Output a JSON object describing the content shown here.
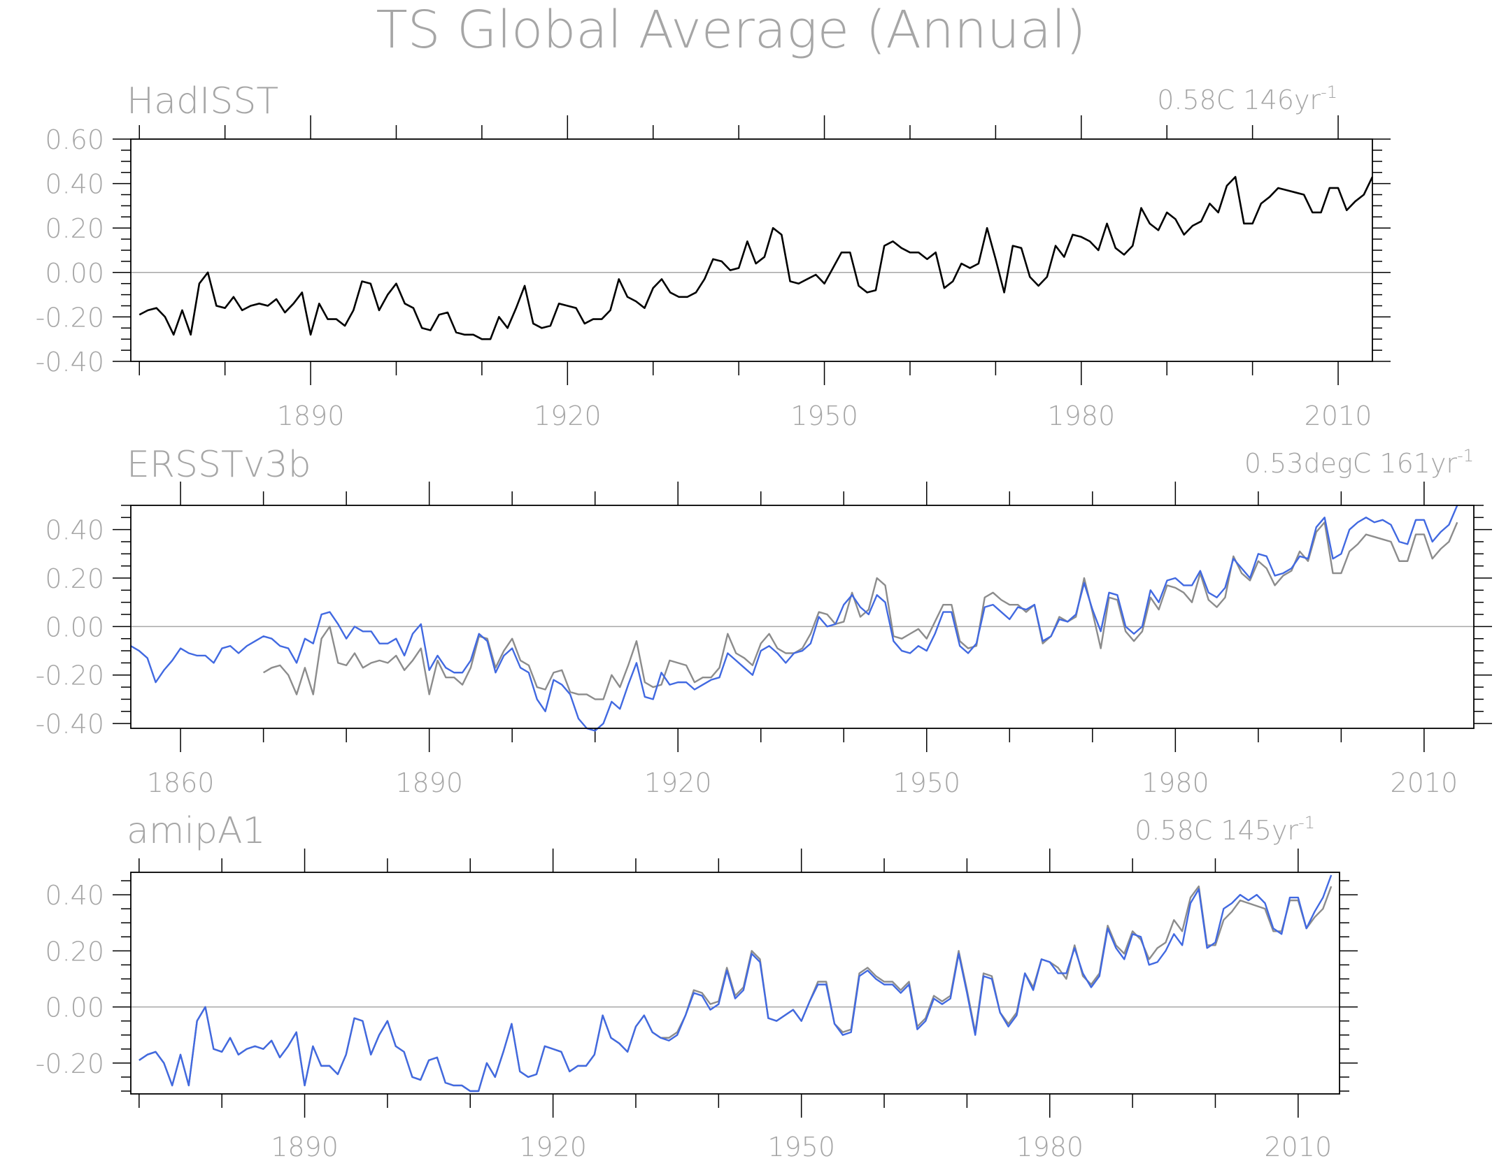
{
  "figure_title": "TS Global Average (Annual)",
  "colors": {
    "text": "#a6a6a6",
    "frame": "#000000",
    "zero": "#a6a6a6",
    "primary": "#000000",
    "reference": "#8c8c8c",
    "blue": "#4169e1"
  },
  "chart_data": [
    {
      "type": "line",
      "name": "HadISST",
      "annotation": "0.58C 146yr",
      "annotation_sup": "-1",
      "xlim": [
        1869,
        2014
      ],
      "ylim": [
        -0.4,
        0.6
      ],
      "yticks": [
        -0.4,
        -0.2,
        0.0,
        0.2,
        0.4,
        0.6
      ],
      "ytick_labels": [
        "-0.40",
        "-0.20",
        "0.00",
        "0.20",
        "0.40",
        "0.60"
      ],
      "xticks": [
        1890,
        1920,
        1950,
        1980,
        2010
      ],
      "xtick_labels": [
        "1890",
        "1920",
        "1950",
        "1980",
        "2010"
      ],
      "series": [
        {
          "role": "primary",
          "x_start": 1870,
          "values": [
            -0.19,
            -0.17,
            -0.16,
            -0.2,
            -0.28,
            -0.17,
            -0.28,
            -0.05,
            0.0,
            -0.15,
            -0.16,
            -0.11,
            -0.17,
            -0.15,
            -0.14,
            -0.15,
            -0.12,
            -0.18,
            -0.14,
            -0.09,
            -0.28,
            -0.14,
            -0.21,
            -0.21,
            -0.24,
            -0.17,
            -0.04,
            -0.05,
            -0.17,
            -0.1,
            -0.05,
            -0.14,
            -0.16,
            -0.25,
            -0.26,
            -0.19,
            -0.18,
            -0.27,
            -0.28,
            -0.28,
            -0.3,
            -0.3,
            -0.2,
            -0.25,
            -0.16,
            -0.06,
            -0.23,
            -0.25,
            -0.24,
            -0.14,
            -0.15,
            -0.16,
            -0.23,
            -0.21,
            -0.21,
            -0.17,
            -0.03,
            -0.11,
            -0.13,
            -0.16,
            -0.07,
            -0.03,
            -0.09,
            -0.11,
            -0.11,
            -0.09,
            -0.03,
            0.06,
            0.05,
            0.01,
            0.02,
            0.14,
            0.04,
            0.07,
            0.2,
            0.17,
            -0.04,
            -0.05,
            -0.03,
            -0.01,
            -0.05,
            0.02,
            0.09,
            0.09,
            -0.06,
            -0.09,
            -0.08,
            0.12,
            0.14,
            0.11,
            0.09,
            0.09,
            0.06,
            0.09,
            -0.07,
            -0.04,
            0.04,
            0.02,
            0.04,
            0.2,
            0.06,
            -0.09,
            0.12,
            0.11,
            -0.02,
            -0.06,
            -0.02,
            0.12,
            0.07,
            0.17,
            0.16,
            0.14,
            0.1,
            0.22,
            0.11,
            0.08,
            0.12,
            0.29,
            0.22,
            0.19,
            0.27,
            0.24,
            0.17,
            0.21,
            0.23,
            0.31,
            0.27,
            0.39,
            0.43,
            0.22,
            0.22,
            0.31,
            0.34,
            0.38,
            0.37,
            0.36,
            0.35,
            0.27,
            0.27,
            0.38,
            0.38,
            0.28,
            0.32,
            0.35,
            0.43
          ]
        }
      ]
    },
    {
      "type": "line",
      "name": "ERSSTv3b",
      "annotation": "0.53degC 161yr",
      "annotation_sup": "-1",
      "xlim": [
        1854,
        2016
      ],
      "ylim": [
        -0.42,
        0.5
      ],
      "yticks": [
        -0.4,
        -0.2,
        0.0,
        0.2,
        0.4
      ],
      "ytick_labels": [
        "-0.40",
        "-0.20",
        "0.00",
        "0.20",
        "0.40"
      ],
      "xticks": [
        1860,
        1890,
        1920,
        1950,
        1980,
        2010
      ],
      "xtick_labels": [
        "1860",
        "1890",
        "1920",
        "1950",
        "1980",
        "2010"
      ],
      "series": [
        {
          "role": "reference",
          "x_start": 1870,
          "values": [
            -0.19,
            -0.17,
            -0.16,
            -0.2,
            -0.28,
            -0.17,
            -0.28,
            -0.05,
            0.0,
            -0.15,
            -0.16,
            -0.11,
            -0.17,
            -0.15,
            -0.14,
            -0.15,
            -0.12,
            -0.18,
            -0.14,
            -0.09,
            -0.28,
            -0.14,
            -0.21,
            -0.21,
            -0.24,
            -0.17,
            -0.04,
            -0.05,
            -0.17,
            -0.1,
            -0.05,
            -0.14,
            -0.16,
            -0.25,
            -0.26,
            -0.19,
            -0.18,
            -0.27,
            -0.28,
            -0.28,
            -0.3,
            -0.3,
            -0.2,
            -0.25,
            -0.16,
            -0.06,
            -0.23,
            -0.25,
            -0.24,
            -0.14,
            -0.15,
            -0.16,
            -0.23,
            -0.21,
            -0.21,
            -0.17,
            -0.03,
            -0.11,
            -0.13,
            -0.16,
            -0.07,
            -0.03,
            -0.09,
            -0.11,
            -0.11,
            -0.09,
            -0.03,
            0.06,
            0.05,
            0.01,
            0.02,
            0.14,
            0.04,
            0.07,
            0.2,
            0.17,
            -0.04,
            -0.05,
            -0.03,
            -0.01,
            -0.05,
            0.02,
            0.09,
            0.09,
            -0.06,
            -0.09,
            -0.08,
            0.12,
            0.14,
            0.11,
            0.09,
            0.09,
            0.06,
            0.09,
            -0.07,
            -0.04,
            0.04,
            0.02,
            0.04,
            0.2,
            0.06,
            -0.09,
            0.12,
            0.11,
            -0.02,
            -0.06,
            -0.02,
            0.12,
            0.07,
            0.17,
            0.16,
            0.14,
            0.1,
            0.22,
            0.11,
            0.08,
            0.12,
            0.29,
            0.22,
            0.19,
            0.27,
            0.24,
            0.17,
            0.21,
            0.23,
            0.31,
            0.27,
            0.39,
            0.43,
            0.22,
            0.22,
            0.31,
            0.34,
            0.38,
            0.37,
            0.36,
            0.35,
            0.27,
            0.27,
            0.38,
            0.38,
            0.28,
            0.32,
            0.35,
            0.43
          ]
        },
        {
          "role": "blue",
          "x_start": 1854,
          "values": [
            -0.08,
            -0.1,
            -0.13,
            -0.23,
            -0.18,
            -0.14,
            -0.09,
            -0.11,
            -0.12,
            -0.12,
            -0.15,
            -0.09,
            -0.08,
            -0.11,
            -0.08,
            -0.06,
            -0.04,
            -0.05,
            -0.08,
            -0.09,
            -0.15,
            -0.05,
            -0.07,
            0.05,
            0.06,
            0.01,
            -0.05,
            0.0,
            -0.02,
            -0.02,
            -0.07,
            -0.07,
            -0.05,
            -0.12,
            -0.03,
            0.01,
            -0.18,
            -0.12,
            -0.17,
            -0.19,
            -0.19,
            -0.14,
            -0.03,
            -0.06,
            -0.19,
            -0.12,
            -0.09,
            -0.17,
            -0.19,
            -0.3,
            -0.35,
            -0.22,
            -0.24,
            -0.28,
            -0.38,
            -0.42,
            -0.43,
            -0.4,
            -0.31,
            -0.34,
            -0.24,
            -0.15,
            -0.29,
            -0.3,
            -0.19,
            -0.24,
            -0.23,
            -0.23,
            -0.26,
            -0.24,
            -0.22,
            -0.21,
            -0.11,
            -0.14,
            -0.17,
            -0.2,
            -0.1,
            -0.08,
            -0.11,
            -0.15,
            -0.11,
            -0.1,
            -0.07,
            0.04,
            0.0,
            0.01,
            0.09,
            0.13,
            0.08,
            0.05,
            0.13,
            0.1,
            -0.06,
            -0.1,
            -0.11,
            -0.08,
            -0.1,
            -0.03,
            0.06,
            0.06,
            -0.08,
            -0.11,
            -0.07,
            0.08,
            0.09,
            0.06,
            0.03,
            0.08,
            0.07,
            0.09,
            -0.06,
            -0.04,
            0.03,
            0.02,
            0.05,
            0.18,
            0.07,
            -0.02,
            0.14,
            0.13,
            0.0,
            -0.03,
            0.0,
            0.15,
            0.1,
            0.19,
            0.2,
            0.17,
            0.17,
            0.23,
            0.14,
            0.12,
            0.16,
            0.28,
            0.24,
            0.2,
            0.3,
            0.29,
            0.21,
            0.22,
            0.24,
            0.29,
            0.28,
            0.41,
            0.45,
            0.28,
            0.3,
            0.4,
            0.43,
            0.45,
            0.43,
            0.44,
            0.42,
            0.35,
            0.34,
            0.44,
            0.44,
            0.35,
            0.39,
            0.42,
            0.5
          ]
        }
      ]
    },
    {
      "type": "line",
      "name": "amipA1",
      "annotation": "0.58C 145yr",
      "annotation_sup": "-1",
      "xlim": [
        1869,
        2015
      ],
      "ylim": [
        -0.31,
        0.48
      ],
      "yticks": [
        -0.2,
        0.0,
        0.2,
        0.4
      ],
      "ytick_labels": [
        "-0.20",
        "0.00",
        "0.20",
        "0.40"
      ],
      "xticks": [
        1890,
        1920,
        1950,
        1980,
        2010
      ],
      "xtick_labels": [
        "1890",
        "1920",
        "1950",
        "1980",
        "2010"
      ],
      "series": [
        {
          "role": "reference",
          "x_start": 1870,
          "values": [
            -0.19,
            -0.17,
            -0.16,
            -0.2,
            -0.28,
            -0.17,
            -0.28,
            -0.05,
            0.0,
            -0.15,
            -0.16,
            -0.11,
            -0.17,
            -0.15,
            -0.14,
            -0.15,
            -0.12,
            -0.18,
            -0.14,
            -0.09,
            -0.28,
            -0.14,
            -0.21,
            -0.21,
            -0.24,
            -0.17,
            -0.04,
            -0.05,
            -0.17,
            -0.1,
            -0.05,
            -0.14,
            -0.16,
            -0.25,
            -0.26,
            -0.19,
            -0.18,
            -0.27,
            -0.28,
            -0.28,
            -0.3,
            -0.3,
            -0.2,
            -0.25,
            -0.16,
            -0.06,
            -0.23,
            -0.25,
            -0.24,
            -0.14,
            -0.15,
            -0.16,
            -0.23,
            -0.21,
            -0.21,
            -0.17,
            -0.03,
            -0.11,
            -0.13,
            -0.16,
            -0.07,
            -0.03,
            -0.09,
            -0.11,
            -0.11,
            -0.09,
            -0.03,
            0.06,
            0.05,
            0.01,
            0.02,
            0.14,
            0.04,
            0.07,
            0.2,
            0.17,
            -0.04,
            -0.05,
            -0.03,
            -0.01,
            -0.05,
            0.02,
            0.09,
            0.09,
            -0.06,
            -0.09,
            -0.08,
            0.12,
            0.14,
            0.11,
            0.09,
            0.09,
            0.06,
            0.09,
            -0.07,
            -0.04,
            0.04,
            0.02,
            0.04,
            0.2,
            0.06,
            -0.09,
            0.12,
            0.11,
            -0.02,
            -0.06,
            -0.02,
            0.12,
            0.07,
            0.17,
            0.16,
            0.14,
            0.1,
            0.22,
            0.11,
            0.08,
            0.12,
            0.29,
            0.22,
            0.19,
            0.27,
            0.24,
            0.17,
            0.21,
            0.23,
            0.31,
            0.27,
            0.39,
            0.43,
            0.22,
            0.22,
            0.31,
            0.34,
            0.38,
            0.37,
            0.36,
            0.35,
            0.27,
            0.27,
            0.38,
            0.38,
            0.28,
            0.32,
            0.35,
            0.43
          ]
        },
        {
          "role": "blue",
          "x_start": 1870,
          "values": [
            -0.19,
            -0.17,
            -0.16,
            -0.2,
            -0.28,
            -0.17,
            -0.28,
            -0.05,
            0.0,
            -0.15,
            -0.16,
            -0.11,
            -0.17,
            -0.15,
            -0.14,
            -0.15,
            -0.12,
            -0.18,
            -0.14,
            -0.09,
            -0.28,
            -0.14,
            -0.21,
            -0.21,
            -0.24,
            -0.17,
            -0.04,
            -0.05,
            -0.17,
            -0.1,
            -0.05,
            -0.14,
            -0.16,
            -0.25,
            -0.26,
            -0.19,
            -0.18,
            -0.27,
            -0.28,
            -0.28,
            -0.3,
            -0.3,
            -0.2,
            -0.25,
            -0.16,
            -0.06,
            -0.23,
            -0.25,
            -0.24,
            -0.14,
            -0.15,
            -0.16,
            -0.23,
            -0.21,
            -0.21,
            -0.17,
            -0.03,
            -0.11,
            -0.13,
            -0.16,
            -0.07,
            -0.03,
            -0.09,
            -0.11,
            -0.12,
            -0.1,
            -0.03,
            0.05,
            0.04,
            -0.01,
            0.01,
            0.13,
            0.03,
            0.06,
            0.19,
            0.16,
            -0.04,
            -0.05,
            -0.03,
            -0.01,
            -0.05,
            0.02,
            0.08,
            0.08,
            -0.06,
            -0.1,
            -0.09,
            0.11,
            0.13,
            0.1,
            0.08,
            0.08,
            0.05,
            0.08,
            -0.08,
            -0.05,
            0.03,
            0.01,
            0.03,
            0.19,
            0.05,
            -0.1,
            0.11,
            0.1,
            -0.02,
            -0.07,
            -0.03,
            0.12,
            0.06,
            0.17,
            0.16,
            0.12,
            0.12,
            0.21,
            0.12,
            0.07,
            0.11,
            0.28,
            0.21,
            0.17,
            0.26,
            0.25,
            0.15,
            0.16,
            0.2,
            0.26,
            0.22,
            0.37,
            0.42,
            0.21,
            0.23,
            0.35,
            0.37,
            0.4,
            0.38,
            0.4,
            0.37,
            0.28,
            0.26,
            0.39,
            0.39,
            0.28,
            0.34,
            0.39,
            0.47
          ]
        }
      ]
    }
  ]
}
